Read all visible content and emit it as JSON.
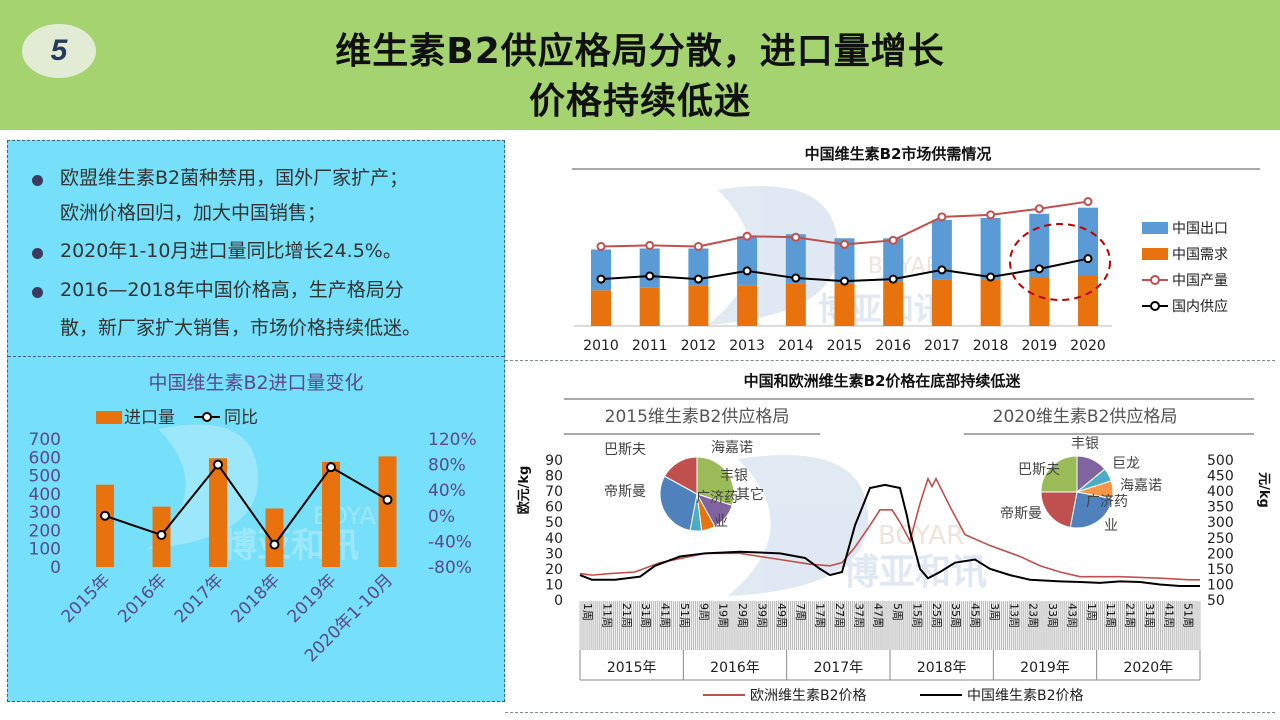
{
  "header": {
    "badge": "5",
    "title_line1": "维生素B2供应格局分散，进口量增长",
    "title_line2": "价格持续低迷"
  },
  "colors": {
    "header_bg": "#a4d36f",
    "panel_bg": "#76dff9",
    "blue": "#5b9bd5",
    "orange": "#e8730e",
    "red": "#c0504d",
    "black": "#000000"
  },
  "bullets": [
    {
      "line1": "欧盟维生素B2菌种禁用，国外厂家扩产；",
      "line2": "欧洲价格回归，加大中国销售；"
    },
    {
      "line1": "2020年1-10月进口量同比增长24.5%。"
    },
    {
      "line1": "2016—2018年中国价格高，生产格局分",
      "line2": "散，新厂家扩大销售，市场价格持续低迷。"
    }
  ],
  "watermark": {
    "en": "BOYAR",
    "cn": "博亚和讯"
  },
  "chart_data": [
    {
      "id": "supply-demand",
      "type": "bar",
      "title": "中国维生素B2市场供需情况",
      "categories": [
        "2010",
        "2011",
        "2012",
        "2013",
        "2014",
        "2015",
        "2016",
        "2017",
        "2018",
        "2019",
        "2020"
      ],
      "series": [
        {
          "name": "中国需求",
          "kind": "stacked-bar",
          "values": [
            35,
            38,
            40,
            40,
            42,
            42,
            44,
            46,
            46,
            48,
            50
          ]
        },
        {
          "name": "中国出口",
          "kind": "stacked-bar",
          "values": [
            40,
            38,
            36,
            48,
            48,
            44,
            42,
            58,
            60,
            62,
            66
          ]
        },
        {
          "name": "中国产量",
          "kind": "line",
          "values": [
            78,
            79,
            78,
            88,
            87,
            80,
            84,
            107,
            109,
            115,
            122
          ]
        },
        {
          "name": "国内供应",
          "kind": "line",
          "values": [
            46,
            49,
            46,
            54,
            47,
            44,
            46,
            55,
            48,
            56,
            66
          ]
        }
      ],
      "legend_order": [
        "中国出口",
        "中国需求",
        "中国产量",
        "国内供应"
      ],
      "ylim": [
        0,
        130
      ],
      "highlight": "2019-2020"
    },
    {
      "id": "import-volume",
      "type": "bar",
      "title": "中国维生素B2进口量变化",
      "categories": [
        "2015年",
        "2016年",
        "2017年",
        "2018年",
        "2019年",
        "2020年1-10月"
      ],
      "series": [
        {
          "name": "进口量",
          "kind": "bar",
          "axis": "left",
          "values": [
            450,
            330,
            595,
            320,
            575,
            605
          ]
        },
        {
          "name": "同比",
          "kind": "line",
          "axis": "right",
          "values": [
            0,
            -30,
            80,
            -45,
            76,
            25
          ]
        }
      ],
      "y_left": {
        "min": 0,
        "max": 700,
        "ticks": [
          "0",
          "100",
          "200",
          "300",
          "400",
          "500",
          "600",
          "700"
        ]
      },
      "y_right": {
        "min": -80,
        "max": 120,
        "ticks": [
          "-80%",
          "-40%",
          "0%",
          "40%",
          "80%",
          "120%"
        ]
      }
    },
    {
      "id": "price",
      "type": "line",
      "title": "中国和欧洲维生素B2价格在底部持续低迷",
      "ylabel_left": "欧元/kg",
      "ylabel_right": "元/kg",
      "y_left": {
        "min": 0,
        "max": 90,
        "ticks": [
          "0",
          "10",
          "20",
          "30",
          "40",
          "50",
          "60",
          "70",
          "80",
          "90"
        ]
      },
      "y_right": {
        "min": 50,
        "max": 500,
        "ticks": [
          "50",
          "100",
          "150",
          "200",
          "250",
          "300",
          "350",
          "400",
          "450",
          "500"
        ]
      },
      "x_years": [
        "2015年",
        "2016年",
        "2017年",
        "2018年",
        "2019年",
        "2020年"
      ],
      "x_week_labels": [
        "1周",
        "11周",
        "21周",
        "31周",
        "41周",
        "51周",
        "9周",
        "19周",
        "29周",
        "39周",
        "49周",
        "7周",
        "17周",
        "27周",
        "37周",
        "47周",
        "5周",
        "15周",
        "25周",
        "35周",
        "45周",
        "3周",
        "13周",
        "23周",
        "33周",
        "43周",
        "1周",
        "11周",
        "21周",
        "31周",
        "41周",
        "51周"
      ],
      "series": [
        {
          "name": "欧洲维生素B2价格",
          "axis": "left",
          "color": "#c0504d",
          "points": [
            [
              0,
              17
            ],
            [
              12,
              16
            ],
            [
              30,
              17
            ],
            [
              55,
              18
            ],
            [
              80,
              24
            ],
            [
              95,
              26
            ],
            [
              125,
              30
            ],
            [
              160,
              30
            ],
            [
              190,
              27
            ],
            [
              230,
              23
            ],
            [
              250,
              22
            ],
            [
              262,
              24
            ],
            [
              275,
              34
            ],
            [
              290,
              48
            ],
            [
              300,
              58
            ],
            [
              312,
              58
            ],
            [
              320,
              50
            ],
            [
              330,
              38
            ],
            [
              340,
              62
            ],
            [
              348,
              78
            ],
            [
              352,
              73
            ],
            [
              356,
              78
            ],
            [
              370,
              60
            ],
            [
              385,
              42
            ],
            [
              410,
              35
            ],
            [
              440,
              28
            ],
            [
              460,
              22
            ],
            [
              480,
              18
            ],
            [
              500,
              15
            ],
            [
              540,
              15
            ],
            [
              580,
              14
            ],
            [
              610,
              13
            ],
            [
              620,
              13
            ]
          ]
        },
        {
          "name": "中国维生素B2价格",
          "axis": "right",
          "color": "#000000",
          "points": [
            [
              0,
              130
            ],
            [
              12,
              115
            ],
            [
              35,
              115
            ],
            [
              60,
              125
            ],
            [
              75,
              160
            ],
            [
              100,
              190
            ],
            [
              125,
              200
            ],
            [
              160,
              205
            ],
            [
              200,
              200
            ],
            [
              225,
              185
            ],
            [
              240,
              150
            ],
            [
              250,
              130
            ],
            [
              262,
              140
            ],
            [
              275,
              290
            ],
            [
              290,
              410
            ],
            [
              305,
              420
            ],
            [
              320,
              410
            ],
            [
              327,
              320
            ],
            [
              330,
              270
            ],
            [
              340,
              150
            ],
            [
              348,
              120
            ],
            [
              360,
              140
            ],
            [
              375,
              170
            ],
            [
              395,
              180
            ],
            [
              410,
              150
            ],
            [
              430,
              130
            ],
            [
              450,
              115
            ],
            [
              480,
              110
            ],
            [
              500,
              108
            ],
            [
              520,
              105
            ],
            [
              540,
              110
            ],
            [
              560,
              108
            ],
            [
              580,
              100
            ],
            [
              600,
              95
            ],
            [
              620,
              95
            ]
          ]
        }
      ],
      "pies": [
        {
          "title": "2015维生素B2供应格局",
          "slices": [
            {
              "label": "巴斯夫",
              "value": 30,
              "color": "#9bbb59"
            },
            {
              "label": "海嘉诺",
              "value": 12,
              "color": "#8064a2"
            },
            {
              "label": "丰银",
              "value": 6,
              "color": "#e8730e"
            },
            {
              "label": "其它",
              "value": 5,
              "color": "#4bacc6"
            },
            {
              "label": "广济药业",
              "value": 30,
              "color": "#4f81bd"
            },
            {
              "label": "帝斯曼",
              "value": 17,
              "color": "#c0504d"
            }
          ]
        },
        {
          "title": "2020维生素B2供应格局",
          "slices": [
            {
              "label": "丰银",
              "value": 14,
              "color": "#8064a2"
            },
            {
              "label": "巨龙",
              "value": 6,
              "color": "#4bacc6"
            },
            {
              "label": "海嘉诺",
              "value": 8,
              "color": "#f79646"
            },
            {
              "label": "广济药业",
              "value": 25,
              "color": "#4f81bd"
            },
            {
              "label": "帝斯曼",
              "value": 22,
              "color": "#c0504d"
            },
            {
              "label": "巴斯夫",
              "value": 25,
              "color": "#9bbb59"
            }
          ]
        }
      ]
    }
  ]
}
